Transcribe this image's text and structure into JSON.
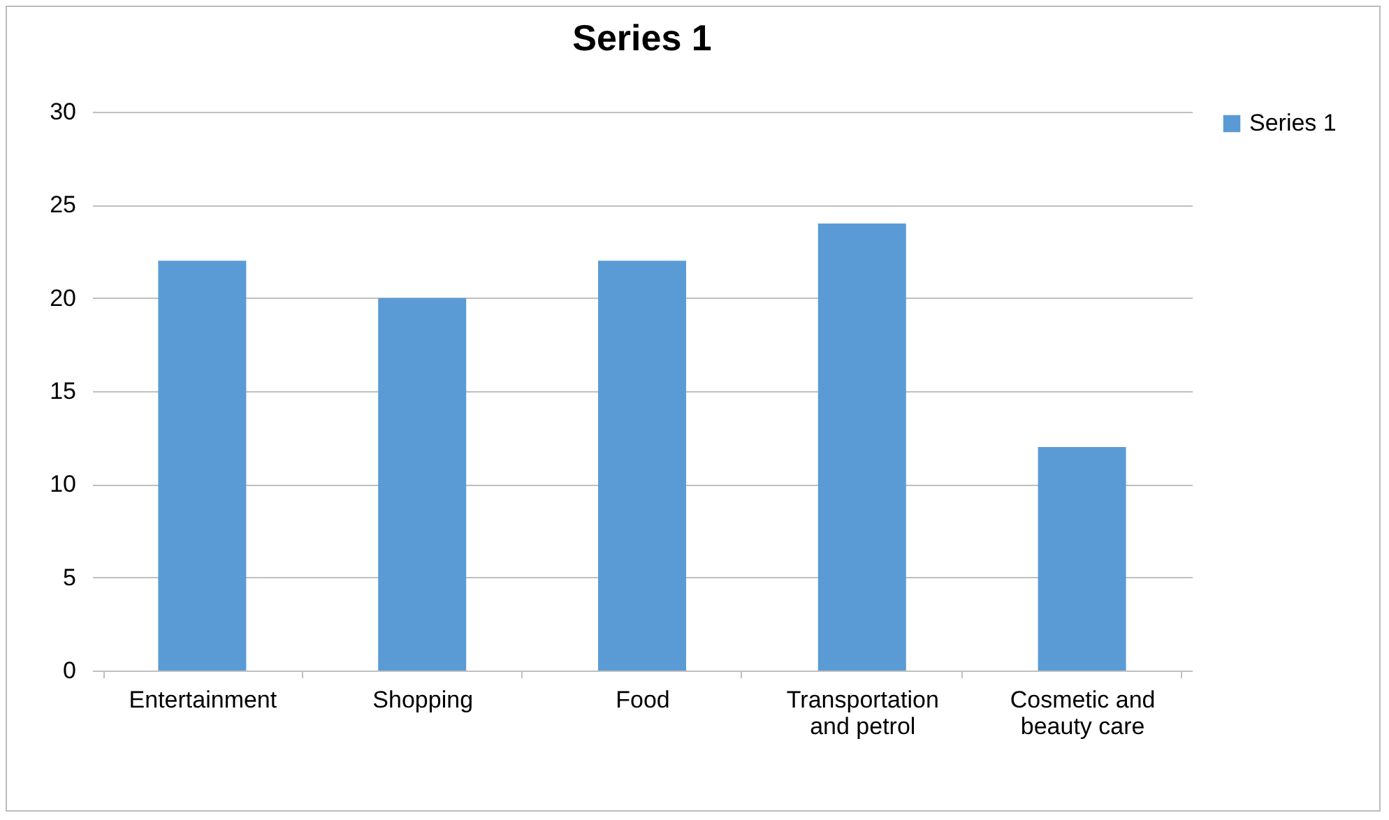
{
  "chart_data": {
    "type": "bar",
    "title": "Series 1",
    "categories": [
      "Entertainment",
      "Shopping",
      "Food",
      "Transportation and petrol",
      "Cosmetic and beauty care"
    ],
    "series": [
      {
        "name": "Series 1",
        "color": "#5b9bd5",
        "values": [
          22,
          20,
          22,
          24,
          12
        ]
      }
    ],
    "ylim": [
      0,
      30
    ],
    "yticks": [
      0,
      5,
      10,
      15,
      20,
      25,
      30
    ],
    "grid": "y",
    "legend": "right"
  }
}
